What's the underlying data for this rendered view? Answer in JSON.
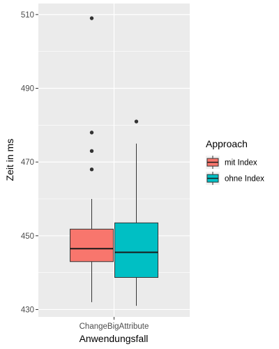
{
  "chart_data": {
    "type": "boxplot",
    "xlabel": "Anwendungsfall",
    "ylabel": "Zeit in ms",
    "categories": [
      "ChangeBigAttribute"
    ],
    "ylim": [
      428,
      513
    ],
    "yticks": [
      430,
      450,
      470,
      490,
      510
    ],
    "grid": true,
    "legend": {
      "title": "Approach",
      "placement": "right"
    },
    "series": [
      {
        "name": "mit Index",
        "color": "#F8766D",
        "category": "ChangeBigAttribute",
        "whisker_low": 432,
        "q1": 443,
        "median": 446.5,
        "q3": 451.8,
        "whisker_high": 460,
        "outliers": [
          468,
          473,
          478,
          509
        ]
      },
      {
        "name": "ohne Index",
        "color": "#00BFC4",
        "category": "ChangeBigAttribute",
        "whisker_low": 431,
        "q1": 438.7,
        "median": 445.5,
        "q3": 453.5,
        "whisker_high": 475,
        "outliers": [
          481
        ]
      }
    ]
  }
}
